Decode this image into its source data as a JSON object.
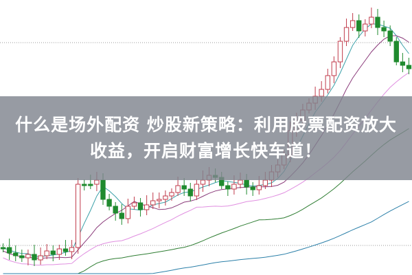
{
  "article": {
    "title_line1": "什么是场外配资 炒股新策略：利用股票配资放大",
    "title_line2": "收益，开启财富增长快车道！"
  },
  "image": {
    "subject": "candlestick-chart",
    "colors": {
      "up": "#c0394a",
      "down": "#1f8a2e",
      "ma_short": "#3aa0a8",
      "ma_mid": "#8a3a7a",
      "ma_long": "#e08ee0",
      "ma_longer": "#2e7d32",
      "ma_longest": "#2a7fa8"
    }
  }
}
